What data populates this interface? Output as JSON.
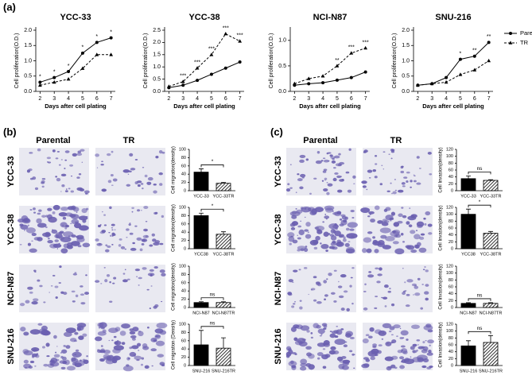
{
  "figure": {
    "panels": [
      "(a)",
      "(b)",
      "(c)"
    ],
    "columns": [
      "Parental",
      "TR"
    ],
    "rows": [
      "YCC-33",
      "YCC-38",
      "NCI-N87",
      "SNU-216"
    ]
  },
  "chart_data": [
    {
      "type": "line",
      "title": "YCC-33",
      "x_label": "Days after cell plating",
      "y_label": "Cell proliferation(O.D.)",
      "x": [
        2,
        3,
        4,
        5,
        6,
        7
      ],
      "xlim": [
        1.7,
        7.3
      ],
      "xticks": [
        2,
        3,
        4,
        5,
        6,
        7
      ],
      "ylim": [
        0,
        2
      ],
      "yticks": [
        {
          "value": 0,
          "label": "0.0"
        },
        0.5,
        {
          "value": 1,
          "label": "1.0"
        },
        1.5,
        {
          "value": 2,
          "label": "2.0"
        }
      ],
      "significance": [
        "*",
        "*",
        "*",
        "*",
        "*",
        "*"
      ],
      "series": [
        {
          "name": "Parental",
          "color": "#000000",
          "marker": "circle",
          "style": "solid",
          "values": [
            0.3,
            0.45,
            0.65,
            1.25,
            1.6,
            1.75
          ]
        },
        {
          "name": "TR",
          "color": "#000000",
          "marker": "triangle",
          "style": "dashed",
          "values": [
            0.2,
            0.3,
            0.4,
            0.75,
            1.2,
            1.2
          ]
        }
      ]
    },
    {
      "type": "line",
      "title": "YCC-38",
      "x_label": "Days after cell plating",
      "y_label": "Cell proliferation(O.D.)",
      "x": [
        2,
        3,
        4,
        5,
        6,
        7
      ],
      "xlim": [
        1.7,
        7.3
      ],
      "xticks": [
        2,
        3,
        4,
        5,
        6,
        7
      ],
      "ylim": [
        0,
        2.5
      ],
      "yticks": [
        {
          "value": 0,
          "label": "0.0"
        },
        0.5,
        {
          "value": 1,
          "label": "1.0"
        },
        1.5,
        {
          "value": 2,
          "label": "2.0"
        },
        2.5
      ],
      "significance": [
        null,
        "***",
        "***",
        "***",
        "***",
        "***"
      ],
      "series": [
        {
          "name": "Parental",
          "color": "#000000",
          "marker": "circle",
          "style": "solid",
          "values": [
            0.15,
            0.25,
            0.45,
            0.7,
            0.95,
            1.2
          ]
        },
        {
          "name": "TR",
          "color": "#000000",
          "marker": "triangle",
          "style": "dashed",
          "values": [
            0.2,
            0.4,
            0.95,
            1.5,
            2.35,
            2.05
          ]
        }
      ]
    },
    {
      "type": "line",
      "title": "NCI-N87",
      "x_label": "Days after cell plating",
      "y_label": "Cell proliferation(O.D.)",
      "x": [
        2,
        3,
        4,
        5,
        6,
        7
      ],
      "xlim": [
        1.7,
        7.3
      ],
      "xticks": [
        2,
        3,
        4,
        5,
        6,
        7
      ],
      "ylim": [
        0,
        1.2
      ],
      "yticks": [
        {
          "value": 0,
          "label": "0.0"
        },
        0.5,
        {
          "value": 1,
          "label": "1.0"
        }
      ],
      "significance": [
        null,
        null,
        null,
        "**",
        "***",
        "***"
      ],
      "series": [
        {
          "name": "Parental",
          "color": "#000000",
          "marker": "circle",
          "style": "solid",
          "values": [
            0.12,
            0.15,
            0.17,
            0.22,
            0.27,
            0.38
          ]
        },
        {
          "name": "TR",
          "color": "#000000",
          "marker": "triangle",
          "style": "dashed",
          "values": [
            0.15,
            0.25,
            0.3,
            0.5,
            0.75,
            0.85
          ]
        }
      ]
    },
    {
      "type": "line",
      "title": "SNU-216",
      "x_label": "Days after cell plating",
      "y_label": "Cell proliferation(O.D.)",
      "x": [
        2,
        3,
        4,
        5,
        6,
        7
      ],
      "xlim": [
        1.7,
        7.3
      ],
      "xticks": [
        2,
        3,
        4,
        5,
        6,
        7
      ],
      "ylim": [
        0,
        2
      ],
      "yticks": [
        {
          "value": 0,
          "label": "0.0"
        },
        0.5,
        {
          "value": 1,
          "label": "1.0"
        },
        1.5,
        {
          "value": 2,
          "label": "2.0"
        }
      ],
      "significance": [
        null,
        null,
        null,
        "*",
        "**",
        "**"
      ],
      "legend": "right",
      "series": [
        {
          "name": "Parental",
          "color": "#000000",
          "marker": "circle",
          "style": "solid",
          "values": [
            0.2,
            0.25,
            0.45,
            1.05,
            1.15,
            1.6
          ]
        },
        {
          "name": "TR",
          "color": "#000000",
          "marker": "triangle",
          "style": "dashed",
          "values": [
            0.2,
            0.25,
            0.3,
            0.55,
            0.7,
            1.0
          ]
        }
      ]
    },
    {
      "type": "bar",
      "y_label": "Cell migration(density)",
      "categories": [
        "YCC-33",
        "YCC-33TR"
      ],
      "values": [
        45,
        18
      ],
      "errors": [
        8,
        2
      ],
      "patterns": [
        "solid",
        "hatch"
      ],
      "significance": "*",
      "ylim": [
        0,
        100
      ],
      "yticks": [
        0,
        20,
        40,
        60,
        80,
        100
      ]
    },
    {
      "type": "bar",
      "y_label": "Cell migration(density)",
      "categories": [
        "YCC38",
        "YCC-38TR"
      ],
      "values": [
        80,
        35
      ],
      "errors": [
        6,
        6
      ],
      "patterns": [
        "solid",
        "hatch"
      ],
      "significance": "*",
      "ylim": [
        0,
        100
      ],
      "yticks": [
        0,
        20,
        40,
        60,
        80,
        100
      ]
    },
    {
      "type": "bar",
      "y_label": "Cell migration(density)",
      "categories": [
        "NCI-N87",
        "NCI-N87TR"
      ],
      "values": [
        12,
        12
      ],
      "errors": [
        2,
        2
      ],
      "patterns": [
        "solid",
        "hatch"
      ],
      "significance": "ns",
      "ylim": [
        0,
        100
      ],
      "yticks": [
        0,
        20,
        40,
        60,
        80,
        100
      ]
    },
    {
      "type": "bar",
      "y_label": "Cell migration (Density)",
      "categories": [
        "SNU-216",
        "SNU-216TR"
      ],
      "values": [
        50,
        42
      ],
      "errors": [
        35,
        25
      ],
      "patterns": [
        "solid",
        "hatch"
      ],
      "significance": "ns",
      "ylim": [
        0,
        100
      ],
      "yticks": [
        0,
        20,
        40,
        60,
        80,
        100
      ]
    },
    {
      "type": "bar",
      "y_label": "Cell Invasion(density)",
      "categories": [
        "YCC-33",
        "YCC-33TR"
      ],
      "values": [
        35,
        30
      ],
      "errors": [
        8,
        2
      ],
      "patterns": [
        "solid",
        "hatch"
      ],
      "significance": "ns",
      "ylim": [
        0,
        120
      ],
      "yticks": [
        0,
        20,
        40,
        60,
        80,
        100,
        120
      ]
    },
    {
      "type": "bar",
      "y_label": "Cell Invasion(density)",
      "categories": [
        "YCC38",
        "YCC-38TR"
      ],
      "values": [
        100,
        45
      ],
      "errors": [
        15,
        5
      ],
      "patterns": [
        "solid",
        "hatch"
      ],
      "significance": "*",
      "ylim": [
        0,
        120
      ],
      "yticks": [
        0,
        20,
        40,
        60,
        80,
        100,
        120
      ]
    },
    {
      "type": "bar",
      "y_label": "Cell Invasion(density)",
      "categories": [
        "NCI-N87",
        "NCI-N87TR"
      ],
      "values": [
        12,
        12
      ],
      "errors": [
        2,
        2
      ],
      "patterns": [
        "solid",
        "hatch"
      ],
      "significance": "ns",
      "ylim": [
        0,
        120
      ],
      "yticks": [
        0,
        20,
        40,
        60,
        80,
        100,
        120
      ]
    },
    {
      "type": "bar",
      "y_label": "Cell Invasion(density)",
      "categories": [
        "SNU-216",
        "SNU-216TR"
      ],
      "values": [
        57,
        67
      ],
      "errors": [
        15,
        20
      ],
      "patterns": [
        "solid",
        "hatch"
      ],
      "significance": "ns",
      "ylim": [
        0,
        120
      ],
      "yticks": [
        0,
        20,
        40,
        60,
        80,
        100,
        120
      ]
    }
  ]
}
